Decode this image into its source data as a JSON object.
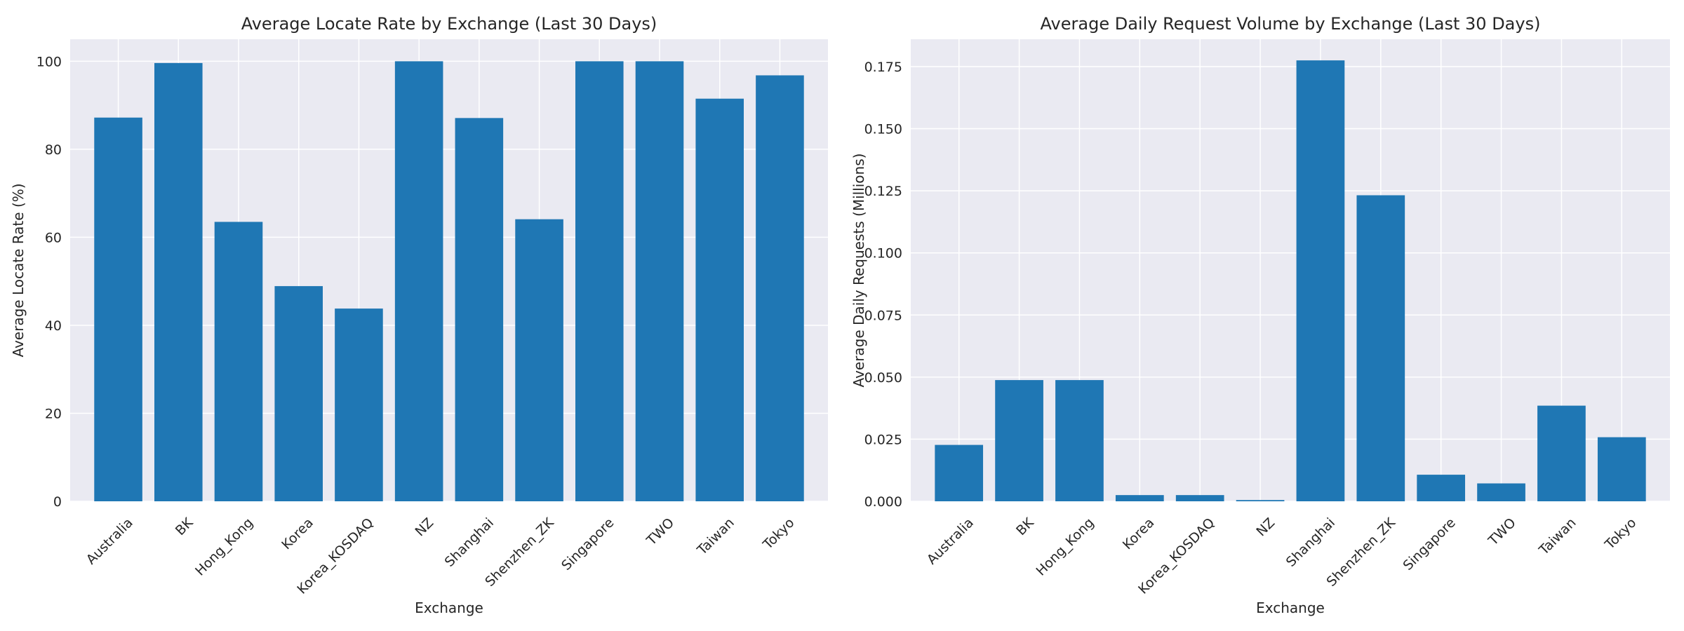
{
  "colors": {
    "bar": "#1f77b4",
    "plot_background": "#eaeaf2",
    "grid": "#ffffff",
    "text": "#262626"
  },
  "chart_data": [
    {
      "type": "bar",
      "title": "Average Locate Rate by Exchange (Last 30 Days)",
      "xlabel": "Exchange",
      "ylabel": "Average Locate Rate (%)",
      "categories": [
        "Australia",
        "BK",
        "Hong_Kong",
        "Korea",
        "Korea_KOSDAQ",
        "NZ",
        "Shanghai",
        "Shenzhen_ZK",
        "Singapore",
        "TWO",
        "Taiwan",
        "Tokyo"
      ],
      "values": [
        87.2,
        99.6,
        63.5,
        48.9,
        43.8,
        100.0,
        87.1,
        64.1,
        100.0,
        100.0,
        91.5,
        96.8
      ],
      "ylim": [
        0,
        105
      ],
      "yticks": [
        0,
        20,
        40,
        60,
        80,
        100
      ],
      "ytick_labels": [
        "0",
        "20",
        "40",
        "60",
        "80",
        "100"
      ],
      "grid": true,
      "legend": "none"
    },
    {
      "type": "bar",
      "title": "Average Daily Request Volume by Exchange (Last 30 Days)",
      "xlabel": "Exchange",
      "ylabel": "Average Daily Requests (Millions)",
      "categories": [
        "Australia",
        "BK",
        "Hong_Kong",
        "Korea",
        "Korea_KOSDAQ",
        "NZ",
        "Shanghai",
        "Shenzhen_ZK",
        "Singapore",
        "TWO",
        "Taiwan",
        "Tokyo"
      ],
      "values": [
        0.0227,
        0.0488,
        0.0488,
        0.0025,
        0.0025,
        0.0005,
        0.1775,
        0.1232,
        0.0107,
        0.0072,
        0.0385,
        0.0258
      ],
      "ylim": [
        0,
        0.186
      ],
      "yticks": [
        0,
        0.025,
        0.05,
        0.075,
        0.1,
        0.125,
        0.15,
        0.175
      ],
      "ytick_labels": [
        "0.000",
        "0.025",
        "0.050",
        "0.075",
        "0.100",
        "0.125",
        "0.150",
        "0.175"
      ],
      "grid": true,
      "legend": "none"
    }
  ]
}
